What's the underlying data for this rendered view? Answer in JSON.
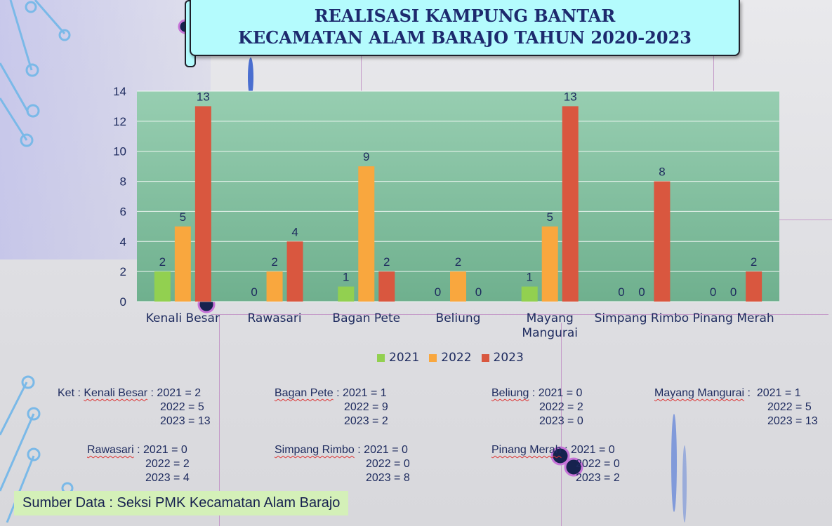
{
  "title": {
    "line1": "REALISASI KAMPUNG BANTAR",
    "line2": "KECAMATAN ALAM BARAJO TAHUN 2020-2023"
  },
  "colors": {
    "plot_bg_top": "#97ceb1",
    "plot_bg_bottom": "#6fb08e",
    "2021": "#92d050",
    "2022": "#f9a73e",
    "2023": "#d9573f",
    "text": "#1d2a5e"
  },
  "chart_data": {
    "type": "bar",
    "title": "REALISASI KAMPUNG BANTAR KECAMATAN ALAM BARAJO TAHUN 2020-2023",
    "categories": [
      "Kenali Besar",
      "Rawasari",
      "Bagan Pete",
      "Beliung",
      "Mayang Mangurai",
      "Simpang Rimbo",
      "Pinang Merah"
    ],
    "category_lines": [
      [
        "Kenali Besar"
      ],
      [
        "Rawasari"
      ],
      [
        "Bagan Pete"
      ],
      [
        "Beliung"
      ],
      [
        "Mayang",
        "Mangurai"
      ],
      [
        "Simpang Rimbo"
      ],
      [
        "Pinang Merah"
      ]
    ],
    "series": [
      {
        "name": "2021",
        "values": [
          2,
          0,
          1,
          0,
          1,
          0,
          0
        ]
      },
      {
        "name": "2022",
        "values": [
          5,
          2,
          9,
          2,
          5,
          0,
          0
        ]
      },
      {
        "name": "2023",
        "values": [
          13,
          4,
          2,
          0,
          13,
          8,
          2
        ]
      }
    ],
    "ylim": [
      0,
      14
    ],
    "yticks": [
      0,
      2,
      4,
      6,
      8,
      10,
      12,
      14
    ],
    "grid": true,
    "data_labels": true,
    "legend_placement": "bottom"
  },
  "notes": [
    [
      "Ket : ",
      "Kenali Besar",
      " : 2021 = 2"
    ],
    "2022 = 5",
    "2023 = 13",
    [
      "",
      "Bagan Pete",
      " : 2021 = 1"
    ],
    "2022 = 9",
    "2023 = 2",
    [
      "",
      "Beliung",
      " : 2021 = 0"
    ],
    "2022 = 2",
    "2023 = 0",
    [
      "",
      "Mayang Mangurai",
      " :  2021 = 1"
    ],
    "2022 = 5",
    "2023 = 13",
    [
      "",
      "Rawasari",
      " : 2021 = 0"
    ],
    "2022 = 2",
    "2023 = 4",
    [
      "",
      "Simpang Rimbo",
      " : 2021 = 0"
    ],
    "2022 = 0",
    "2023 = 8",
    [
      "",
      "Pinang Merah",
      " : 2021 = 0"
    ],
    "2022 = 0",
    "2023 = 2"
  ],
  "source": "Sumber Data : Seksi PMK Kecamatan Alam Barajo"
}
